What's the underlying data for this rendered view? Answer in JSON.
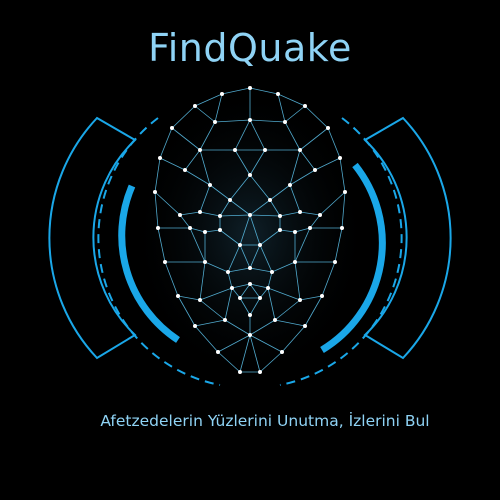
{
  "logo": {
    "title": "FindQuake",
    "tagline": "Afetzedelerin Yüzlerini Unutma, İzlerini Bul",
    "icon": "face-mesh-scan-icon"
  },
  "colors": {
    "background": "#000000",
    "accent": "#1aa7e8",
    "accent_light": "#8fd3f5",
    "mesh": "#5fc8f2"
  }
}
